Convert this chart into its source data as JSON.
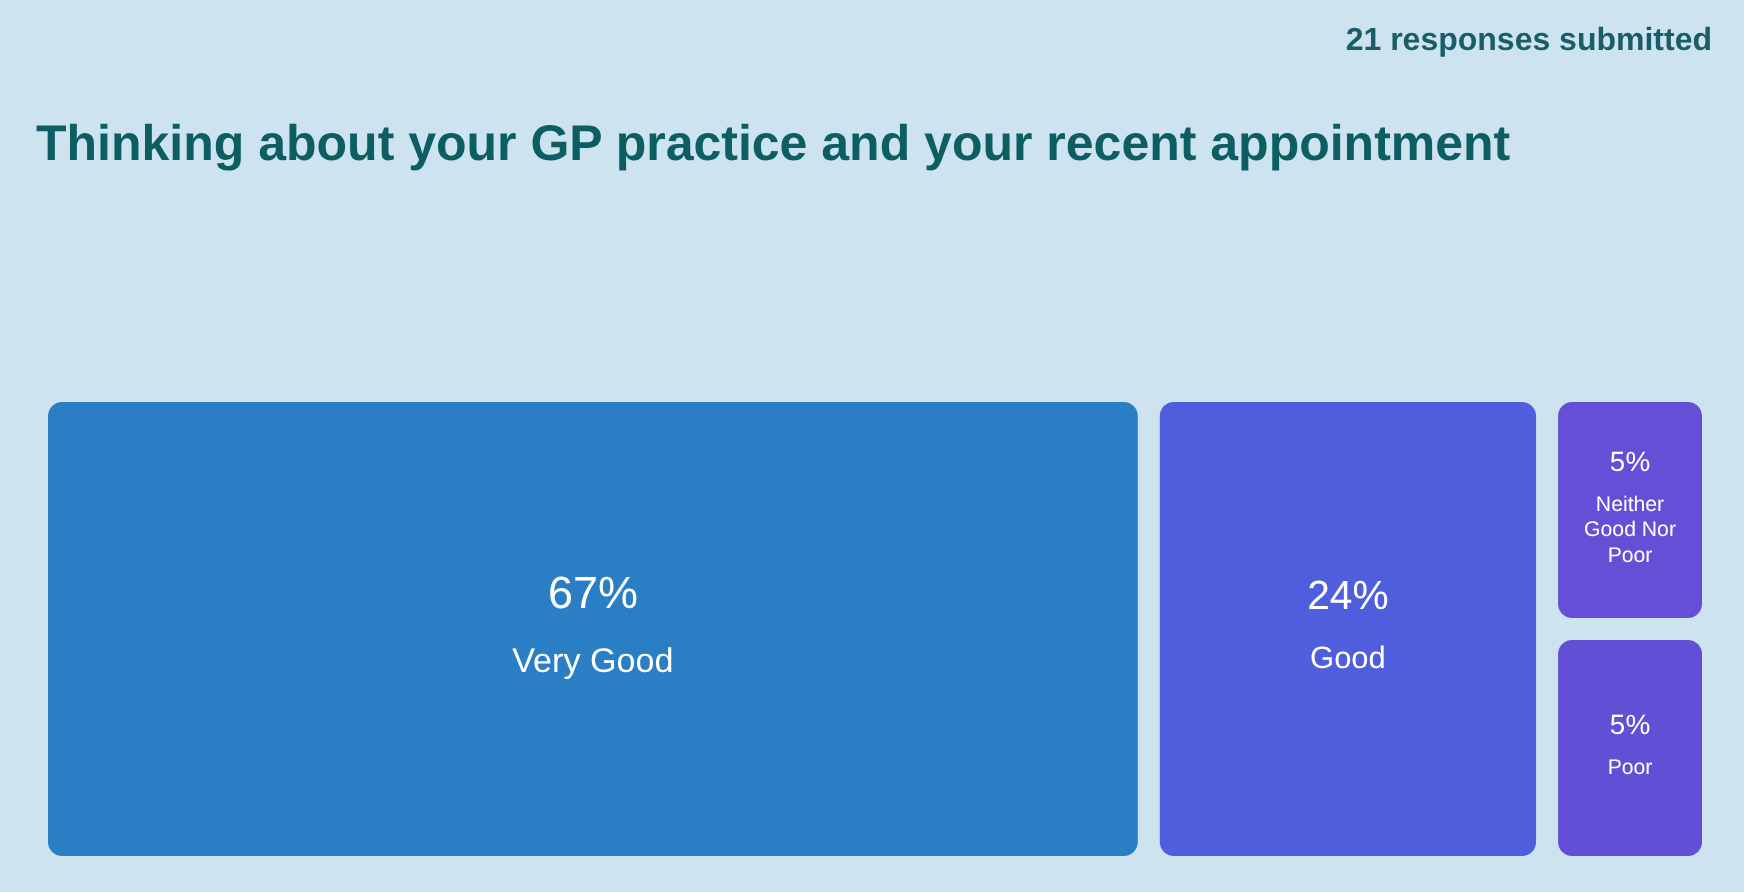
{
  "chart_data": {
    "type": "other",
    "title": "Thinking about your GP practice and your recent appointment",
    "annotations": [
      "21 responses submitted"
    ],
    "categories": [
      "Very Good",
      "Good",
      "Neither Good Nor Poor",
      "Poor"
    ],
    "values": [
      67,
      24,
      5,
      5
    ],
    "value_labels": [
      "67%",
      "24%",
      "5%",
      "5%"
    ],
    "colors": [
      "#2a7ec4",
      "#4e5edc",
      "#6450d6",
      "#6150d6"
    ]
  }
}
